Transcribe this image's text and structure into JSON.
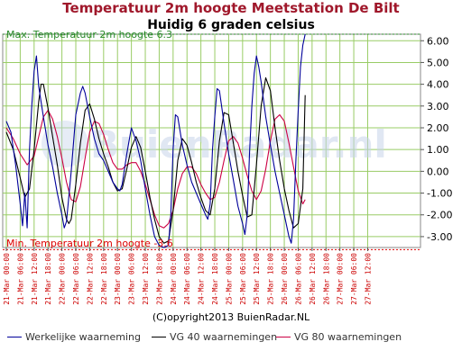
{
  "chart_data": {
    "type": "line",
    "title": "Temperatuur 2m hoogte Meetstation De Bilt",
    "subtitle": "Huidig 6 graden celsius",
    "watermark": "BuienRadar.nl",
    "max_label": "Max. Temperatuur 2m hoogte 6.3",
    "min_label": "Min. Temperatuur 2m hoogte -3.6",
    "max_value": 6.3,
    "min_value": -3.6,
    "ylim": [
      -3.5,
      6.3
    ],
    "y_ticks": [
      "6.00",
      "5.00",
      "4.00",
      "3.00",
      "2.00",
      "1.00",
      "0.00",
      "-1.00",
      "-2.00",
      "-3.00"
    ],
    "y_tick_values": [
      6,
      5,
      4,
      3,
      2,
      1,
      0,
      -1,
      -2,
      -3
    ],
    "x_ticks": [
      "21-Mar 00:00",
      "21-Mar 06:00",
      "21-Mar 12:00",
      "21-Mar 18:00",
      "22-Mar 00:00",
      "22-Mar 06:00",
      "22-Mar 12:00",
      "22-Mar 18:00",
      "23-Mar 00:00",
      "23-Mar 06:00",
      "23-Mar 12:00",
      "23-Mar 18:00",
      "24-Mar 00:00",
      "24-Mar 06:00",
      "24-Mar 12:00",
      "24-Mar 18:00",
      "25-Mar 00:00",
      "25-Mar 06:00",
      "25-Mar 12:00",
      "25-Mar 18:00",
      "26-Mar 00:00",
      "26-Mar 06:00",
      "26-Mar 12:00",
      "26-Mar 18:00",
      "27-Mar 00:00",
      "27-Mar 06:00",
      "27-Mar 12:00"
    ],
    "grid": true,
    "copyright": "(C)opyright2013 BuienRadar.NL",
    "colors": {
      "series1": "#00009a",
      "series2": "#000000",
      "series3": "#cc0044",
      "grid": "#99cc66",
      "max": "#2a8a2a",
      "min": "#dd0000",
      "tick_x": "#cc0000"
    },
    "series": [
      {
        "name": "Werkelijke waarneming",
        "color": "#00009a",
        "points": [
          [
            0,
            2.3
          ],
          [
            2,
            1.8
          ],
          [
            4,
            0.3
          ],
          [
            6,
            -1.5
          ],
          [
            7,
            -2.5
          ],
          [
            8,
            -1.0
          ],
          [
            9,
            -2.6
          ],
          [
            10,
            1.0
          ],
          [
            11,
            3.0
          ],
          [
            12,
            4.6
          ],
          [
            13,
            5.3
          ],
          [
            14,
            3.9
          ],
          [
            16,
            2.5
          ],
          [
            18,
            1.2
          ],
          [
            20,
            0.2
          ],
          [
            22,
            -1.0
          ],
          [
            24,
            -2.0
          ],
          [
            25,
            -2.6
          ],
          [
            26,
            -2.3
          ],
          [
            28,
            0.0
          ],
          [
            30,
            2.6
          ],
          [
            32,
            3.6
          ],
          [
            33,
            3.9
          ],
          [
            34,
            3.6
          ],
          [
            36,
            2.5
          ],
          [
            38,
            1.5
          ],
          [
            40,
            0.8
          ],
          [
            42,
            0.5
          ],
          [
            44,
            0.0
          ],
          [
            46,
            -0.5
          ],
          [
            48,
            -0.8
          ],
          [
            49,
            -0.9
          ],
          [
            50,
            -0.6
          ],
          [
            52,
            0.8
          ],
          [
            54,
            2.0
          ],
          [
            56,
            1.4
          ],
          [
            58,
            0.5
          ],
          [
            60,
            -0.8
          ],
          [
            62,
            -2.0
          ],
          [
            64,
            -3.0
          ],
          [
            66,
            -3.4
          ],
          [
            68,
            -3.5
          ],
          [
            70,
            -3.4
          ],
          [
            71,
            -2.0
          ],
          [
            72,
            1.0
          ],
          [
            73,
            2.6
          ],
          [
            74,
            2.5
          ],
          [
            76,
            1.2
          ],
          [
            78,
            0.3
          ],
          [
            80,
            -0.5
          ],
          [
            82,
            -1.0
          ],
          [
            84,
            -1.5
          ],
          [
            86,
            -2.0
          ],
          [
            87,
            -2.2
          ],
          [
            88,
            -1.5
          ],
          [
            89,
            1.0
          ],
          [
            90,
            2.5
          ],
          [
            91,
            3.8
          ],
          [
            92,
            3.7
          ],
          [
            94,
            2.2
          ],
          [
            96,
            0.8
          ],
          [
            98,
            -0.4
          ],
          [
            100,
            -1.6
          ],
          [
            102,
            -2.4
          ],
          [
            103,
            -2.9
          ],
          [
            104,
            -2.0
          ],
          [
            105,
            0.8
          ],
          [
            106,
            3.0
          ],
          [
            107,
            4.5
          ],
          [
            108,
            5.3
          ],
          [
            109,
            4.8
          ],
          [
            110,
            4.1
          ],
          [
            112,
            2.5
          ],
          [
            114,
            1.2
          ],
          [
            116,
            0.0
          ],
          [
            118,
            -1.0
          ],
          [
            120,
            -2.0
          ],
          [
            122,
            -3.0
          ],
          [
            123,
            -3.3
          ],
          [
            124,
            -2.2
          ],
          [
            125,
            0.5
          ],
          [
            126,
            2.8
          ],
          [
            127,
            4.8
          ],
          [
            128,
            5.8
          ],
          [
            129,
            6.3
          ]
        ]
      },
      {
        "name": "VG 40 waarnemingen",
        "color": "#000000",
        "points": [
          [
            0,
            1.8
          ],
          [
            3,
            1.0
          ],
          [
            6,
            -0.3
          ],
          [
            8,
            -1.2
          ],
          [
            10,
            -0.8
          ],
          [
            12,
            1.0
          ],
          [
            14,
            3.2
          ],
          [
            15,
            4.0
          ],
          [
            16,
            4.0
          ],
          [
            18,
            2.9
          ],
          [
            20,
            1.6
          ],
          [
            22,
            0.3
          ],
          [
            24,
            -1.2
          ],
          [
            26,
            -2.2
          ],
          [
            27,
            -2.4
          ],
          [
            28,
            -2.2
          ],
          [
            30,
            -0.6
          ],
          [
            32,
            1.3
          ],
          [
            34,
            2.8
          ],
          [
            36,
            3.1
          ],
          [
            38,
            2.4
          ],
          [
            40,
            1.5
          ],
          [
            42,
            0.8
          ],
          [
            44,
            0.2
          ],
          [
            46,
            -0.5
          ],
          [
            48,
            -0.9
          ],
          [
            50,
            -0.8
          ],
          [
            52,
            0.1
          ],
          [
            54,
            1.1
          ],
          [
            56,
            1.6
          ],
          [
            58,
            1.1
          ],
          [
            60,
            0.0
          ],
          [
            62,
            -1.2
          ],
          [
            64,
            -2.2
          ],
          [
            66,
            -3.0
          ],
          [
            68,
            -3.3
          ],
          [
            70,
            -3.2
          ],
          [
            72,
            -1.8
          ],
          [
            74,
            0.5
          ],
          [
            76,
            1.5
          ],
          [
            78,
            1.2
          ],
          [
            80,
            0.4
          ],
          [
            82,
            -0.5
          ],
          [
            84,
            -1.2
          ],
          [
            86,
            -1.8
          ],
          [
            88,
            -2.0
          ],
          [
            90,
            -0.8
          ],
          [
            92,
            1.4
          ],
          [
            94,
            2.7
          ],
          [
            96,
            2.6
          ],
          [
            98,
            1.3
          ],
          [
            100,
            0.0
          ],
          [
            102,
            -1.1
          ],
          [
            104,
            -2.1
          ],
          [
            106,
            -2.0
          ],
          [
            108,
            0.3
          ],
          [
            110,
            3.0
          ],
          [
            112,
            4.3
          ],
          [
            114,
            3.7
          ],
          [
            116,
            2.0
          ],
          [
            118,
            0.5
          ],
          [
            120,
            -0.8
          ],
          [
            122,
            -1.8
          ],
          [
            124,
            -2.6
          ],
          [
            126,
            -2.4
          ],
          [
            128,
            -0.8
          ],
          [
            129,
            3.5
          ]
        ]
      },
      {
        "name": "VG 80 waarnemingen",
        "color": "#cc0044",
        "points": [
          [
            0,
            2.0
          ],
          [
            3,
            1.5
          ],
          [
            6,
            0.8
          ],
          [
            9,
            0.3
          ],
          [
            12,
            0.7
          ],
          [
            14,
            1.6
          ],
          [
            16,
            2.5
          ],
          [
            18,
            2.8
          ],
          [
            20,
            2.4
          ],
          [
            22,
            1.6
          ],
          [
            24,
            0.6
          ],
          [
            26,
            -0.5
          ],
          [
            28,
            -1.3
          ],
          [
            30,
            -1.4
          ],
          [
            32,
            -0.7
          ],
          [
            34,
            0.6
          ],
          [
            36,
            1.8
          ],
          [
            38,
            2.3
          ],
          [
            40,
            2.2
          ],
          [
            42,
            1.7
          ],
          [
            44,
            1.0
          ],
          [
            46,
            0.4
          ],
          [
            48,
            0.1
          ],
          [
            50,
            0.1
          ],
          [
            52,
            0.3
          ],
          [
            54,
            0.4
          ],
          [
            56,
            0.4
          ],
          [
            58,
            0.0
          ],
          [
            60,
            -0.6
          ],
          [
            62,
            -1.3
          ],
          [
            64,
            -2.0
          ],
          [
            66,
            -2.5
          ],
          [
            68,
            -2.6
          ],
          [
            70,
            -2.4
          ],
          [
            72,
            -1.8
          ],
          [
            74,
            -0.8
          ],
          [
            76,
            -0.1
          ],
          [
            78,
            0.2
          ],
          [
            80,
            0.2
          ],
          [
            82,
            -0.1
          ],
          [
            84,
            -0.6
          ],
          [
            86,
            -1.0
          ],
          [
            88,
            -1.3
          ],
          [
            90,
            -1.2
          ],
          [
            92,
            -0.5
          ],
          [
            94,
            0.5
          ],
          [
            96,
            1.4
          ],
          [
            98,
            1.6
          ],
          [
            100,
            1.3
          ],
          [
            102,
            0.6
          ],
          [
            104,
            -0.2
          ],
          [
            106,
            -0.9
          ],
          [
            108,
            -1.3
          ],
          [
            110,
            -0.9
          ],
          [
            112,
            0.1
          ],
          [
            114,
            1.4
          ],
          [
            116,
            2.4
          ],
          [
            118,
            2.6
          ],
          [
            120,
            2.3
          ],
          [
            122,
            1.3
          ],
          [
            124,
            0.2
          ],
          [
            126,
            -0.9
          ],
          [
            128,
            -1.5
          ],
          [
            129,
            -1.3
          ]
        ]
      }
    ]
  }
}
